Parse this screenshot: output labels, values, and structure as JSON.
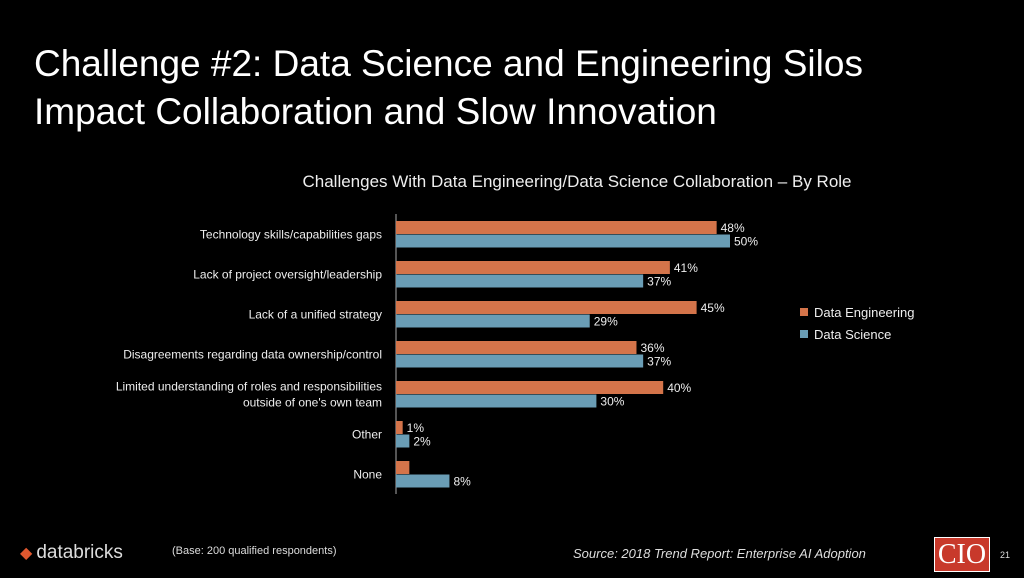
{
  "title_line1": "Challenge #2: Data Science and Engineering Silos",
  "title_line2": "Impact Collaboration and Slow Innovation",
  "chart_data": {
    "type": "bar",
    "orientation": "horizontal",
    "title": "Challenges With Data Engineering/Data Science Collaboration – By Role",
    "categories": [
      [
        "Technology skills/capabilities gaps"
      ],
      [
        "Lack of project oversight/leadership"
      ],
      [
        "Lack of a unified strategy"
      ],
      [
        "Disagreements regarding data ownership/control"
      ],
      [
        "Limited understanding of roles and responsibilities",
        "outside of one's own team"
      ],
      [
        "Other"
      ],
      [
        "None"
      ]
    ],
    "series": [
      {
        "name": "Data Engineering",
        "color": "#d4744a",
        "values": [
          48,
          41,
          45,
          36,
          40,
          1,
          2
        ],
        "labels": [
          "48%",
          "41%",
          "45%",
          "36%",
          "40%",
          "1%",
          ""
        ]
      },
      {
        "name": "Data Science",
        "color": "#6a9db5",
        "values": [
          50,
          37,
          29,
          37,
          30,
          2,
          8
        ],
        "labels": [
          "50%",
          "37%",
          "29%",
          "37%",
          "30%",
          "2%",
          "8%"
        ]
      }
    ],
    "legend": "right",
    "xlim": [
      0,
      100
    ]
  },
  "footer": {
    "base": "(Base: 200 qualified respondents)",
    "source": "Source: 2018 Trend Report: Enterprise AI Adoption",
    "page": "21",
    "logo": "databricks",
    "cio": "CIO"
  }
}
